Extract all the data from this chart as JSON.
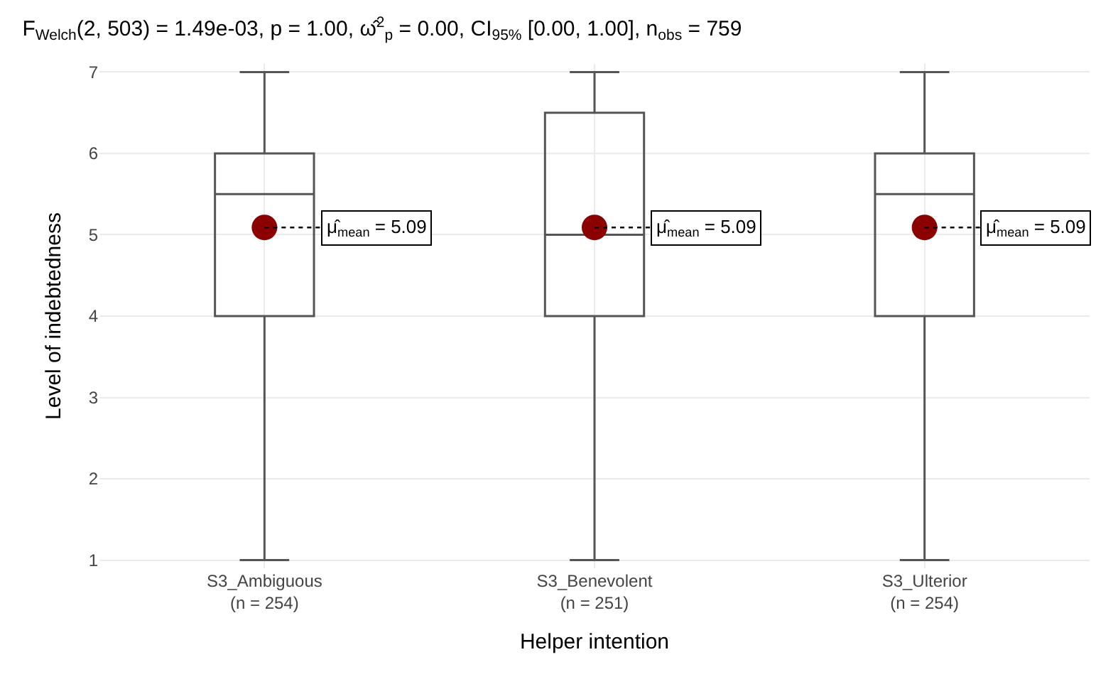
{
  "chart_data": {
    "type": "box",
    "title": "F$_{Welch}$(2, 503) = 1.49e-03, p = 1.00, ω̂$^{2}$$_{p}$ = 0.00, CI$_{95%}$ [0.00, 1.00], n$_{obs}$ = 759",
    "xlabel": "Helper intention",
    "ylabel": "Level of indebtedness",
    "categories": [
      "S3_Ambiguous\n(n = 254)",
      "S3_Benevolent\n(n = 251)",
      "S3_Ulterior\n(n = 254)"
    ],
    "boxes": [
      {
        "low": 1,
        "q1": 4,
        "median": 5.5,
        "q3": 6,
        "high": 7,
        "mean": 5.09
      },
      {
        "low": 1,
        "q1": 4,
        "median": 5,
        "q3": 6.5,
        "high": 7,
        "mean": 5.09
      },
      {
        "low": 1,
        "q1": 4,
        "median": 5.5,
        "q3": 6,
        "high": 7,
        "mean": 5.09
      }
    ],
    "annotations": [
      "μ̂$_{mean}$ = 5.09",
      "μ̂$_{mean}$ = 5.09",
      "μ̂$_{mean}$ = 5.09"
    ],
    "ylim": [
      0.9,
      7.1
    ],
    "yticks": [
      1,
      2,
      3,
      4,
      5,
      6,
      7
    ],
    "grid": true
  }
}
